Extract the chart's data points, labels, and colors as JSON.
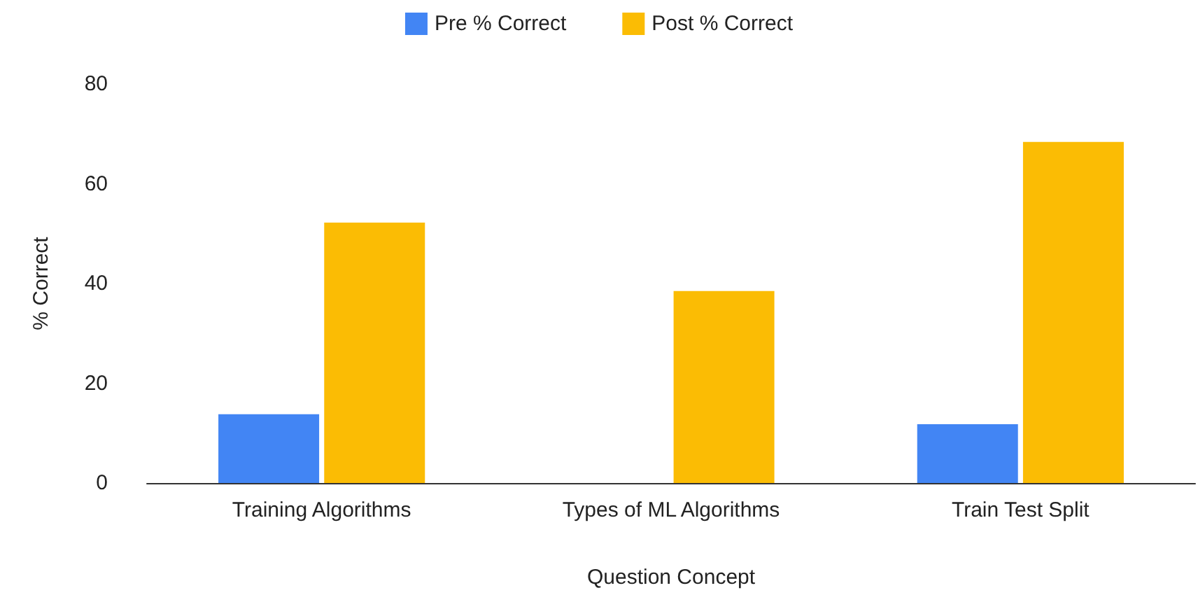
{
  "chart_data": {
    "type": "bar",
    "xlabel": "Question Concept",
    "ylabel": "% Correct",
    "categories": [
      "Training Algorithms",
      "Types of ML Algorithms",
      "Train Test Split"
    ],
    "series": [
      {
        "name": "Pre % Correct",
        "color": "#4285f4",
        "values": [
          13.8,
          0,
          11.8
        ]
      },
      {
        "name": "Post % Correct",
        "color": "#fbbc04",
        "values": [
          52.2,
          38.5,
          68.4
        ]
      }
    ],
    "ylim": [
      0,
      80
    ],
    "yticks": [
      0,
      20,
      40,
      60,
      80
    ],
    "grid": false,
    "legend": "top"
  }
}
